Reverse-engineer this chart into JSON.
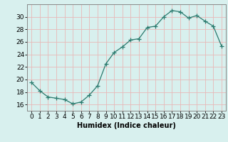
{
  "x": [
    0,
    1,
    2,
    3,
    4,
    5,
    6,
    7,
    8,
    9,
    10,
    11,
    12,
    13,
    14,
    15,
    16,
    17,
    18,
    19,
    20,
    21,
    22,
    23
  ],
  "y": [
    19.5,
    18.2,
    17.2,
    17.0,
    16.8,
    16.1,
    16.4,
    17.5,
    19.0,
    22.5,
    24.3,
    25.2,
    26.3,
    26.5,
    28.3,
    28.5,
    30.0,
    31.0,
    30.8,
    29.8,
    30.2,
    29.3,
    28.5,
    25.3
  ],
  "line_color": "#2a7a6e",
  "marker": "+",
  "marker_size": 4,
  "background_color": "#d8f0ee",
  "grid_color": "#e8b8b8",
  "xlabel": "Humidex (Indice chaleur)",
  "xlim": [
    -0.5,
    23.5
  ],
  "ylim": [
    15.0,
    32.0
  ],
  "yticks": [
    16,
    18,
    20,
    22,
    24,
    26,
    28,
    30
  ],
  "xticks": [
    0,
    1,
    2,
    3,
    4,
    5,
    6,
    7,
    8,
    9,
    10,
    11,
    12,
    13,
    14,
    15,
    16,
    17,
    18,
    19,
    20,
    21,
    22,
    23
  ],
  "label_fontsize": 7,
  "tick_fontsize": 6.5
}
